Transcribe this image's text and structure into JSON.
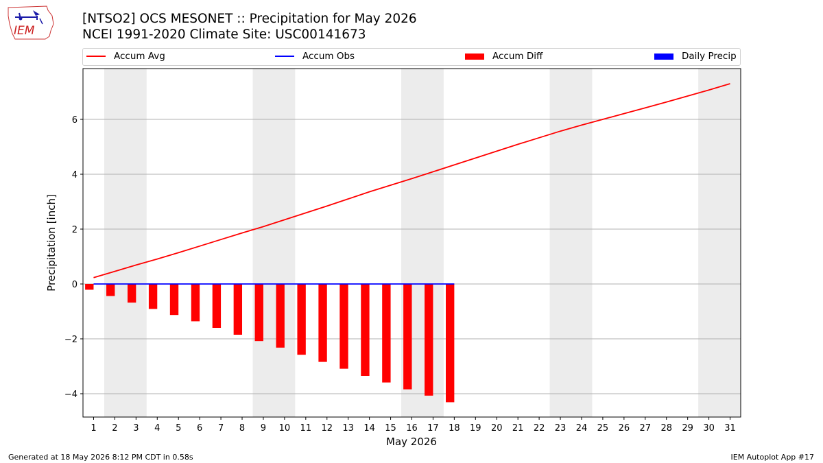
{
  "header": {
    "title_line1": "[NTSO2] OCS MESONET :: Precipitation for May 2026",
    "title_line2": "NCEI 1991-2020 Climate Site: USC00141673",
    "logo_text": "IEM"
  },
  "legend": {
    "items": [
      {
        "label": "Accum Avg",
        "kind": "line",
        "color": "#ff0000"
      },
      {
        "label": "Accum Obs",
        "kind": "line",
        "color": "#0000ff"
      },
      {
        "label": "Accum Diff",
        "kind": "patch",
        "color": "#ff0000"
      },
      {
        "label": "Daily Precip",
        "kind": "patch",
        "color": "#0000ff"
      }
    ]
  },
  "footer": {
    "generated": "Generated at 18 May 2026 8:12 PM CDT in 0.58s",
    "app": "IEM Autoplot App #17"
  },
  "chart_data": {
    "type": "bar",
    "xlabel": "May 2026",
    "ylabel": "Precipitation [inch]",
    "xlim": [
      0.5,
      31.5
    ],
    "ylim": [
      -4.85,
      7.85
    ],
    "yticks": [
      -4,
      -2,
      0,
      2,
      4,
      6
    ],
    "ytick_labels": [
      "−4",
      "−2",
      "0",
      "2",
      "4",
      "6"
    ],
    "categories": [
      1,
      2,
      3,
      4,
      5,
      6,
      7,
      8,
      9,
      10,
      11,
      12,
      13,
      14,
      15,
      16,
      17,
      18,
      19,
      20,
      21,
      22,
      23,
      24,
      25,
      26,
      27,
      28,
      29,
      30,
      31
    ],
    "weekend_shading": [
      [
        1.5,
        3.5
      ],
      [
        8.5,
        10.5
      ],
      [
        15.5,
        17.5
      ],
      [
        22.5,
        24.5
      ],
      [
        29.5,
        31.5
      ]
    ],
    "grid": "horizontal",
    "legend_position": "top",
    "series": [
      {
        "name": "Accum Avg",
        "type": "line",
        "color": "#ff0000",
        "x": [
          1,
          2,
          3,
          4,
          5,
          6,
          7,
          8,
          9,
          10,
          11,
          12,
          13,
          14,
          15,
          16,
          17,
          18,
          19,
          20,
          21,
          22,
          23,
          24,
          25,
          26,
          27,
          28,
          29,
          30,
          31
        ],
        "values": [
          0.23,
          0.46,
          0.69,
          0.91,
          1.14,
          1.38,
          1.62,
          1.86,
          2.09,
          2.34,
          2.59,
          2.84,
          3.1,
          3.36,
          3.6,
          3.84,
          4.09,
          4.34,
          4.59,
          4.84,
          5.09,
          5.33,
          5.57,
          5.79,
          6.0,
          6.21,
          6.42,
          6.63,
          6.85,
          7.07,
          7.3
        ]
      },
      {
        "name": "Accum Obs",
        "type": "line",
        "color": "#0000ff",
        "x": [
          1,
          2,
          3,
          4,
          5,
          6,
          7,
          8,
          9,
          10,
          11,
          12,
          13,
          14,
          15,
          16,
          17,
          18
        ],
        "values": [
          0,
          0,
          0,
          0,
          0,
          0,
          0,
          0,
          0,
          0,
          0,
          0,
          0,
          0,
          0,
          0,
          0,
          0
        ]
      },
      {
        "name": "Accum Diff",
        "type": "bar",
        "color": "#ff0000",
        "x": [
          1,
          2,
          3,
          4,
          5,
          6,
          7,
          8,
          9,
          10,
          11,
          12,
          13,
          14,
          15,
          16,
          17,
          18
        ],
        "values": [
          -0.21,
          -0.44,
          -0.68,
          -0.91,
          -1.13,
          -1.36,
          -1.6,
          -1.85,
          -2.08,
          -2.32,
          -2.58,
          -2.84,
          -3.09,
          -3.35,
          -3.59,
          -3.84,
          -4.07,
          -4.31
        ]
      },
      {
        "name": "Daily Precip",
        "type": "bar",
        "color": "#0000ff",
        "x": [
          1,
          2,
          3,
          4,
          5,
          6,
          7,
          8,
          9,
          10,
          11,
          12,
          13,
          14,
          15,
          16,
          17,
          18
        ],
        "values": [
          0,
          0,
          0,
          0,
          0,
          0,
          0,
          0,
          0,
          0,
          0,
          0,
          0,
          0,
          0,
          0,
          0,
          0
        ]
      }
    ]
  }
}
